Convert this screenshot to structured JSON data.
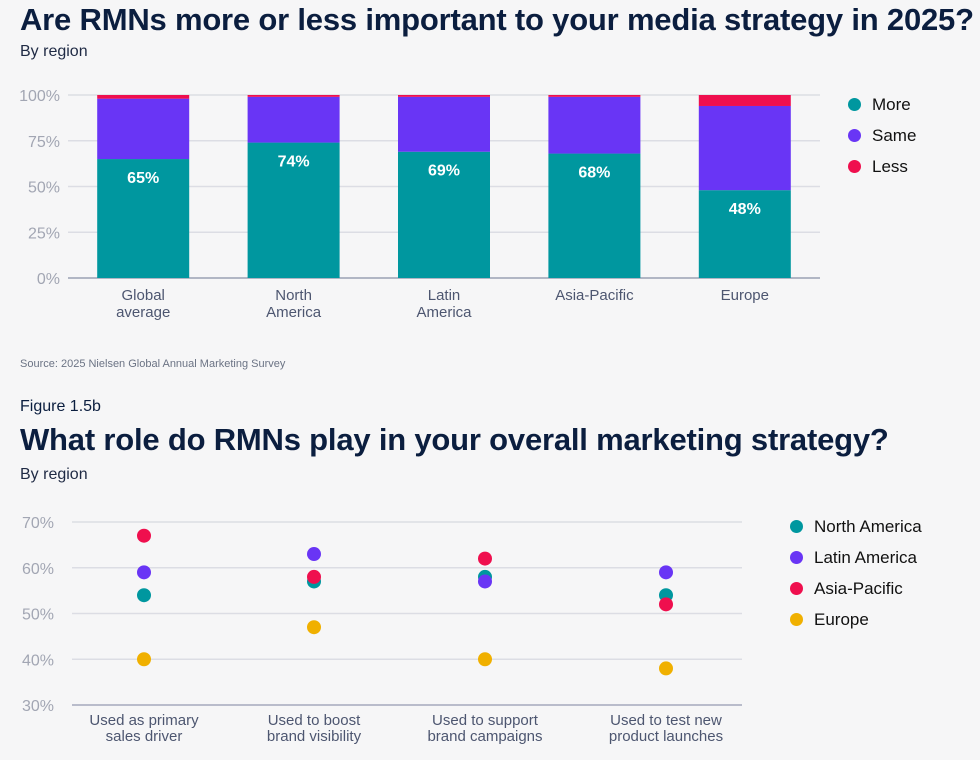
{
  "chart_data": [
    {
      "type": "bar",
      "stacked": true,
      "title": "Are RMNs more or less important to your media strategy in 2025?",
      "subtitle": "By region",
      "source": "Source: 2025 Nielsen Global Annual Marketing Survey",
      "categories": [
        [
          "Global",
          "average"
        ],
        [
          "North",
          "America"
        ],
        [
          "Latin",
          "America"
        ],
        [
          "Asia-Pacific"
        ],
        [
          "Europe"
        ]
      ],
      "series": [
        {
          "name": "More",
          "color": "#00979f",
          "values": [
            65,
            74,
            69,
            68,
            48
          ],
          "labels": [
            "65%",
            "74%",
            "69%",
            "68%",
            "48%"
          ]
        },
        {
          "name": "Same",
          "color": "#6935f5",
          "values": [
            33,
            25,
            30,
            31,
            46
          ]
        },
        {
          "name": "Less",
          "color": "#ef0f4e",
          "values": [
            2,
            1,
            1,
            1,
            6
          ]
        }
      ],
      "ylim": [
        0,
        100
      ],
      "yticks": [
        0,
        25,
        50,
        75,
        100
      ],
      "ytick_labels": [
        "0%",
        "25%",
        "50%",
        "75%",
        "100%"
      ],
      "xlabel": "",
      "ylabel": "",
      "grid": true,
      "legend_position": "right"
    },
    {
      "type": "scatter",
      "figure_label": "Figure 1.5b",
      "title": "What role do RMNs play in your overall marketing strategy?",
      "subtitle": "By region",
      "categories": [
        [
          "Used as primary",
          "sales driver"
        ],
        [
          "Used to boost",
          "brand visibility"
        ],
        [
          "Used to support",
          "brand campaigns"
        ],
        [
          "Used to test new",
          "product launches"
        ]
      ],
      "series": [
        {
          "name": "North America",
          "color": "#00979f",
          "values": [
            54,
            57,
            58,
            54
          ]
        },
        {
          "name": "Latin America",
          "color": "#6935f5",
          "values": [
            59,
            63,
            57,
            59
          ]
        },
        {
          "name": "Asia-Pacific",
          "color": "#ef0f4e",
          "values": [
            67,
            58,
            62,
            52
          ]
        },
        {
          "name": "Europe",
          "color": "#f0b000",
          "values": [
            40,
            47,
            40,
            38
          ]
        }
      ],
      "ylim": [
        30,
        70
      ],
      "yticks": [
        30,
        40,
        50,
        60,
        70
      ],
      "ytick_labels": [
        "30%",
        "40%",
        "50%",
        "60%",
        "70%"
      ],
      "xlabel": "",
      "ylabel": "",
      "grid": true,
      "legend_position": "right"
    }
  ]
}
